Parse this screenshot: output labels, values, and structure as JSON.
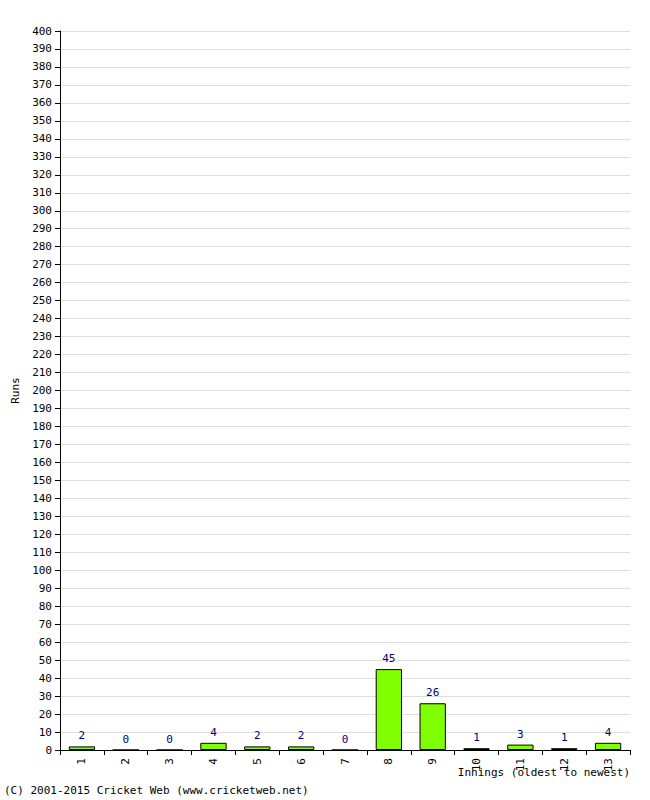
{
  "chart_data": {
    "type": "bar",
    "xlabel": "Innings (oldest to newest)",
    "ylabel": "Runs",
    "annotations": [
      "(C) 2001-2015 Cricket Web (www.cricketweb.net)"
    ],
    "categories": [
      "1",
      "2",
      "3",
      "4",
      "5",
      "6",
      "7",
      "8",
      "9",
      "10",
      "11",
      "12",
      "13"
    ],
    "values": [
      2,
      0,
      0,
      4,
      2,
      2,
      0,
      45,
      26,
      1,
      3,
      1,
      4
    ],
    "color": "#80ff00",
    "ylim": [
      0,
      400
    ],
    "yticks": [
      0,
      10,
      20,
      30,
      40,
      50,
      60,
      70,
      80,
      90,
      100,
      110,
      120,
      130,
      140,
      150,
      160,
      170,
      180,
      190,
      200,
      210,
      220,
      230,
      240,
      250,
      260,
      270,
      280,
      290,
      300,
      310,
      320,
      330,
      340,
      350,
      360,
      370,
      380,
      390,
      400
    ],
    "grid": true,
    "data_labels": true
  }
}
